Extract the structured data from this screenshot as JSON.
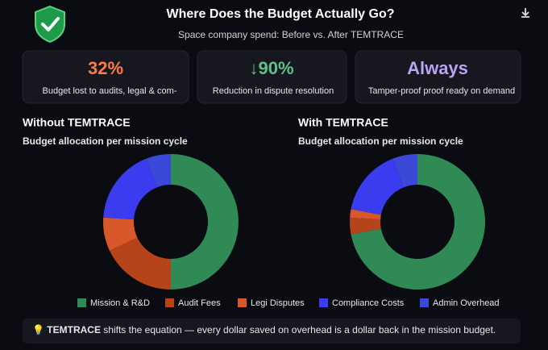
{
  "header": {
    "title": "Where Does the Budget Actually Go?",
    "subtitle": "Space company spend: Before vs. After TEMTRACE"
  },
  "cards": [
    {
      "value": "32%",
      "label": "Budget lost to audits, legal & com-"
    },
    {
      "value": "↓90%",
      "label": "Reduction in dispute resolution"
    },
    {
      "value": "Always",
      "label": "Tamper-proof proof ready on demand"
    }
  ],
  "chart_data": [
    {
      "type": "donut",
      "title": "Without TEMTRACE",
      "subtitle": "Budget allocation per mission cycle",
      "categories": [
        "Mission & R&D",
        "Audit Fees",
        "Legi Disputes",
        "Compliance Costs",
        "Admin Overhead"
      ],
      "values": [
        50,
        18,
        8,
        18,
        6
      ],
      "colors": [
        "#2f8a55",
        "#b5441a",
        "#d9582b",
        "#3b3bef",
        "#3a49d8"
      ]
    },
    {
      "type": "donut",
      "title": "With TEMTRACE",
      "subtitle": "Budget allocation per mission cycle",
      "categories": [
        "Mission & R&D",
        "Audit Fees",
        "Legi Disputes",
        "Compliance Costs",
        "Admin Overhead"
      ],
      "values": [
        72,
        4,
        2,
        16,
        6
      ],
      "colors": [
        "#2f8a55",
        "#b5441a",
        "#d9582b",
        "#3b3bef",
        "#3a49d8"
      ]
    }
  ],
  "footer": {
    "icon": "💡",
    "emphasis": "TEMTRACE",
    "text": " shifts the equation — every dollar saved on overhead is a dollar back in the mission budget."
  }
}
